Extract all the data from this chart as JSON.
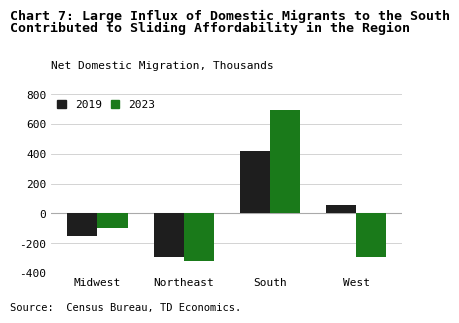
{
  "title_line1": "Chart 7: Large Influx of Domestic Migrants to the South",
  "title_line2": "Contributed to Sliding Affordability in the Region",
  "subtitle": "Net Domestic Migration, Thousands",
  "source": "Source:  Census Bureau, TD Economics.",
  "categories": [
    "Midwest",
    "Northeast",
    "South",
    "West"
  ],
  "values_2019": [
    -155,
    -295,
    420,
    55
  ],
  "values_2023": [
    -100,
    -320,
    695,
    -295
  ],
  "color_2019": "#1e1e1e",
  "color_2023": "#1a7a1a",
  "ylim": [
    -400,
    800
  ],
  "yticks": [
    -400,
    -200,
    0,
    200,
    400,
    600,
    800
  ],
  "bar_width": 0.35,
  "legend_labels": [
    "2019",
    "2023"
  ],
  "title_fontsize": 9.5,
  "subtitle_fontsize": 8,
  "source_fontsize": 7.5,
  "tick_fontsize": 8,
  "legend_fontsize": 8
}
